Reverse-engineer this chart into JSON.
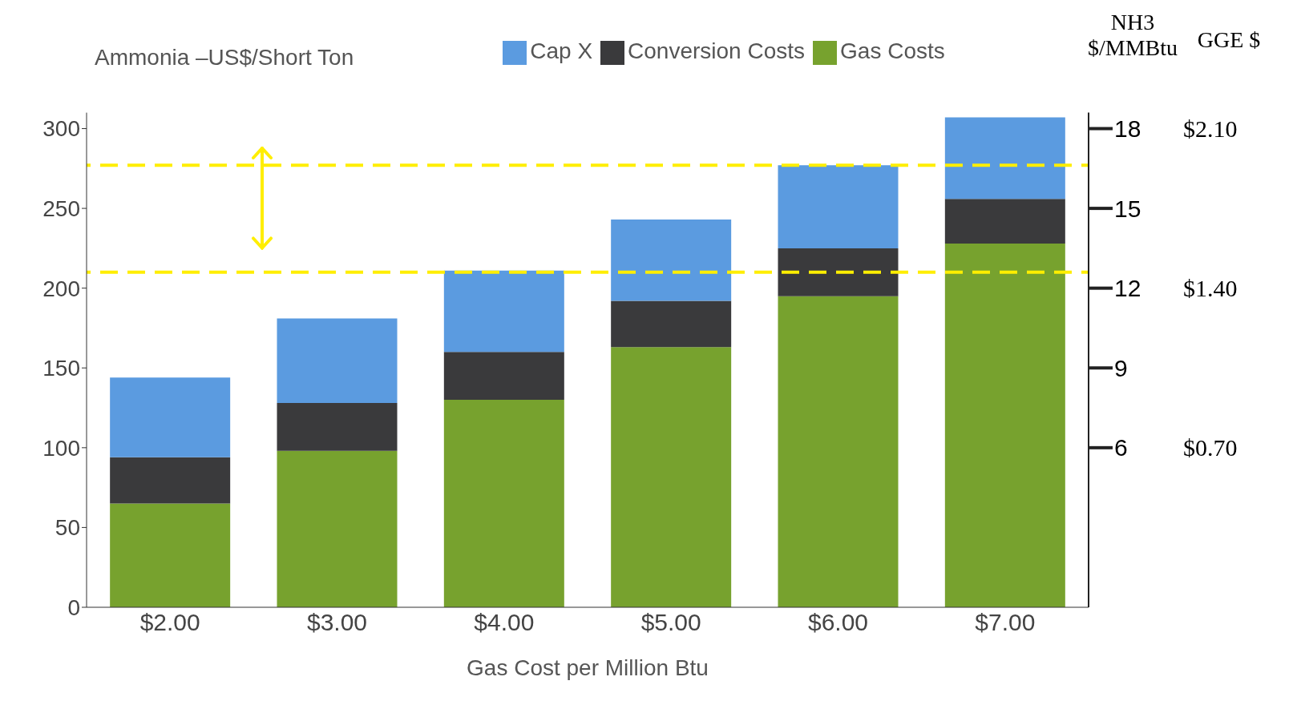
{
  "chart_data": {
    "type": "bar",
    "stacked": true,
    "ylabel": "Ammonia –US$/Short Ton",
    "xlabel": "Gas Cost per Million Btu",
    "y2label": "NH3 $/MMBtu",
    "y3label": "GGE $",
    "categories": [
      "$2.00",
      "$3.00",
      "$4.00",
      "$5.00",
      "$6.00",
      "$7.00"
    ],
    "series": [
      {
        "name": "Gas Costs",
        "color": "#77a22e",
        "values": [
          65,
          98,
          130,
          163,
          195,
          228
        ]
      },
      {
        "name": "Conversion Costs",
        "color": "#3a3a3c",
        "values": [
          29,
          30,
          30,
          29,
          30,
          28
        ]
      },
      {
        "name": "Cap X",
        "color": "#5b9be0",
        "values": [
          50,
          53,
          51,
          51,
          52,
          51
        ]
      }
    ],
    "ylim": [
      0,
      310
    ],
    "yticks": [
      0,
      50,
      100,
      150,
      200,
      250,
      300
    ],
    "y2lim": [
      0,
      18.6
    ],
    "y2ticks": [
      6,
      9,
      12,
      15,
      18
    ],
    "y3lim": [
      0,
      2.17
    ],
    "y3ticks": [
      {
        "value": 0.7,
        "label": "$0.70"
      },
      {
        "value": 1.4,
        "label": "$1.40"
      },
      {
        "value": 2.1,
        "label": "$2.10"
      }
    ],
    "ref_lines": [
      {
        "axis": "y",
        "value": 277,
        "color": "#ffee00",
        "line_style": "dashed"
      },
      {
        "axis": "y",
        "value": 210,
        "color": "#ffee00",
        "line_style": "dashed"
      }
    ],
    "legend": "top"
  }
}
